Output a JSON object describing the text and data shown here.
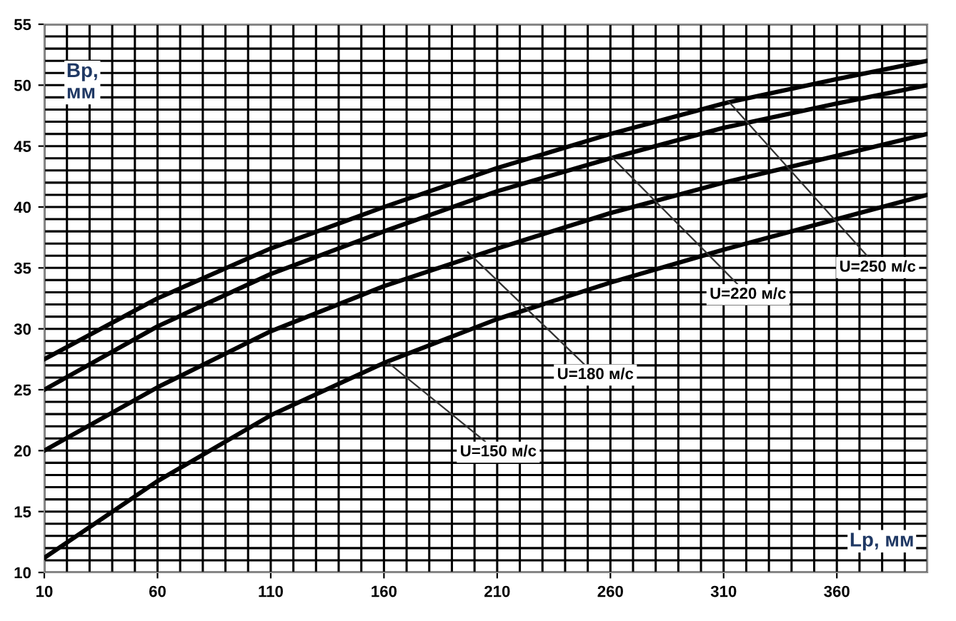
{
  "chart_data": {
    "type": "line",
    "xlabel": "Lp, мм",
    "ylabel": "Вр,\nмм",
    "x": [
      10,
      60,
      110,
      160,
      210,
      260,
      310,
      360,
      400
    ],
    "series": [
      {
        "color": "#000000",
        "values": [
          11.2,
          17.5,
          22.9,
          27.2,
          30.8,
          33.8,
          36.5,
          39,
          41
        ]
      },
      {
        "color": "#000000",
        "values": [
          20,
          25.2,
          29.8,
          33.5,
          36.6,
          39.5,
          42,
          44.2,
          46
        ]
      },
      {
        "color": "#000000",
        "values": [
          25,
          30.2,
          34.5,
          38,
          41.3,
          44,
          46.5,
          48.5,
          50
        ]
      },
      {
        "color": "#000000",
        "values": [
          27.5,
          32.5,
          36.6,
          40,
          43.2,
          46,
          48.5,
          50.5,
          52
        ]
      }
    ],
    "annotations": [
      {
        "text": "U=150 м/с",
        "x": 162,
        "y": 27.2
      },
      {
        "text": "U=180 м/с",
        "x": 197,
        "y": 36.3
      },
      {
        "text": "U=220 м/с",
        "x": 260,
        "y": 44.2
      },
      {
        "text": "U=250 м/с",
        "x": 312,
        "y": 48.7
      }
    ],
    "xlim": [
      10,
      400
    ],
    "ylim": [
      10,
      55
    ],
    "xticks": [
      10,
      {
        "value": 20,
        "label": null
      },
      {
        "value": 30,
        "label": null
      },
      {
        "value": 40,
        "label": null
      },
      {
        "value": 50,
        "label": null
      },
      60,
      {
        "value": 70,
        "label": null
      },
      {
        "value": 80,
        "label": null
      },
      {
        "value": 90,
        "label": null
      },
      {
        "value": 100,
        "label": null
      },
      110,
      {
        "value": 120,
        "label": null
      },
      {
        "value": 130,
        "label": null
      },
      {
        "value": 140,
        "label": null
      },
      {
        "value": 150,
        "label": null
      },
      160,
      {
        "value": 170,
        "label": null
      },
      {
        "value": 180,
        "label": null
      },
      {
        "value": 190,
        "label": null
      },
      {
        "value": 200,
        "label": null
      },
      210,
      {
        "value": 220,
        "label": null
      },
      {
        "value": 230,
        "label": null
      },
      {
        "value": 240,
        "label": null
      },
      {
        "value": 250,
        "label": null
      },
      260,
      {
        "value": 270,
        "label": null
      },
      {
        "value": 280,
        "label": null
      },
      {
        "value": 290,
        "label": null
      },
      {
        "value": 300,
        "label": null
      },
      310,
      {
        "value": 320,
        "label": null
      },
      {
        "value": 330,
        "label": null
      },
      {
        "value": 340,
        "label": null
      },
      {
        "value": 350,
        "label": null
      },
      360,
      {
        "value": 370,
        "label": null
      },
      {
        "value": 380,
        "label": null
      },
      {
        "value": 390,
        "label": null
      },
      {
        "value": 400,
        "label": null
      }
    ],
    "yticks": [
      10,
      {
        "value": 11,
        "label": null
      },
      {
        "value": 12,
        "label": null
      },
      {
        "value": 13,
        "label": null
      },
      {
        "value": 14,
        "label": null
      },
      15,
      {
        "value": 16,
        "label": null
      },
      {
        "value": 17,
        "label": null
      },
      {
        "value": 18,
        "label": null
      },
      {
        "value": 19,
        "label": null
      },
      20,
      {
        "value": 21,
        "label": null
      },
      {
        "value": 22,
        "label": null
      },
      {
        "value": 23,
        "label": null
      },
      {
        "value": 24,
        "label": null
      },
      25,
      {
        "value": 26,
        "label": null
      },
      {
        "value": 27,
        "label": null
      },
      {
        "value": 28,
        "label": null
      },
      {
        "value": 29,
        "label": null
      },
      30,
      {
        "value": 31,
        "label": null
      },
      {
        "value": 32,
        "label": null
      },
      {
        "value": 33,
        "label": null
      },
      {
        "value": 34,
        "label": null
      },
      35,
      {
        "value": 36,
        "label": null
      },
      {
        "value": 37,
        "label": null
      },
      {
        "value": 38,
        "label": null
      },
      {
        "value": 39,
        "label": null
      },
      40,
      {
        "value": 41,
        "label": null
      },
      {
        "value": 42,
        "label": null
      },
      {
        "value": 43,
        "label": null
      },
      {
        "value": 44,
        "label": null
      },
      45,
      {
        "value": 46,
        "label": null
      },
      {
        "value": 47,
        "label": null
      },
      {
        "value": 48,
        "label": null
      },
      {
        "value": 49,
        "label": null
      },
      50,
      {
        "value": 51,
        "label": null
      },
      {
        "value": 52,
        "label": null
      },
      {
        "value": 53,
        "label": null
      },
      {
        "value": 54,
        "label": null
      },
      55
    ],
    "grid": true,
    "marker": "none",
    "line_style": "solid"
  }
}
